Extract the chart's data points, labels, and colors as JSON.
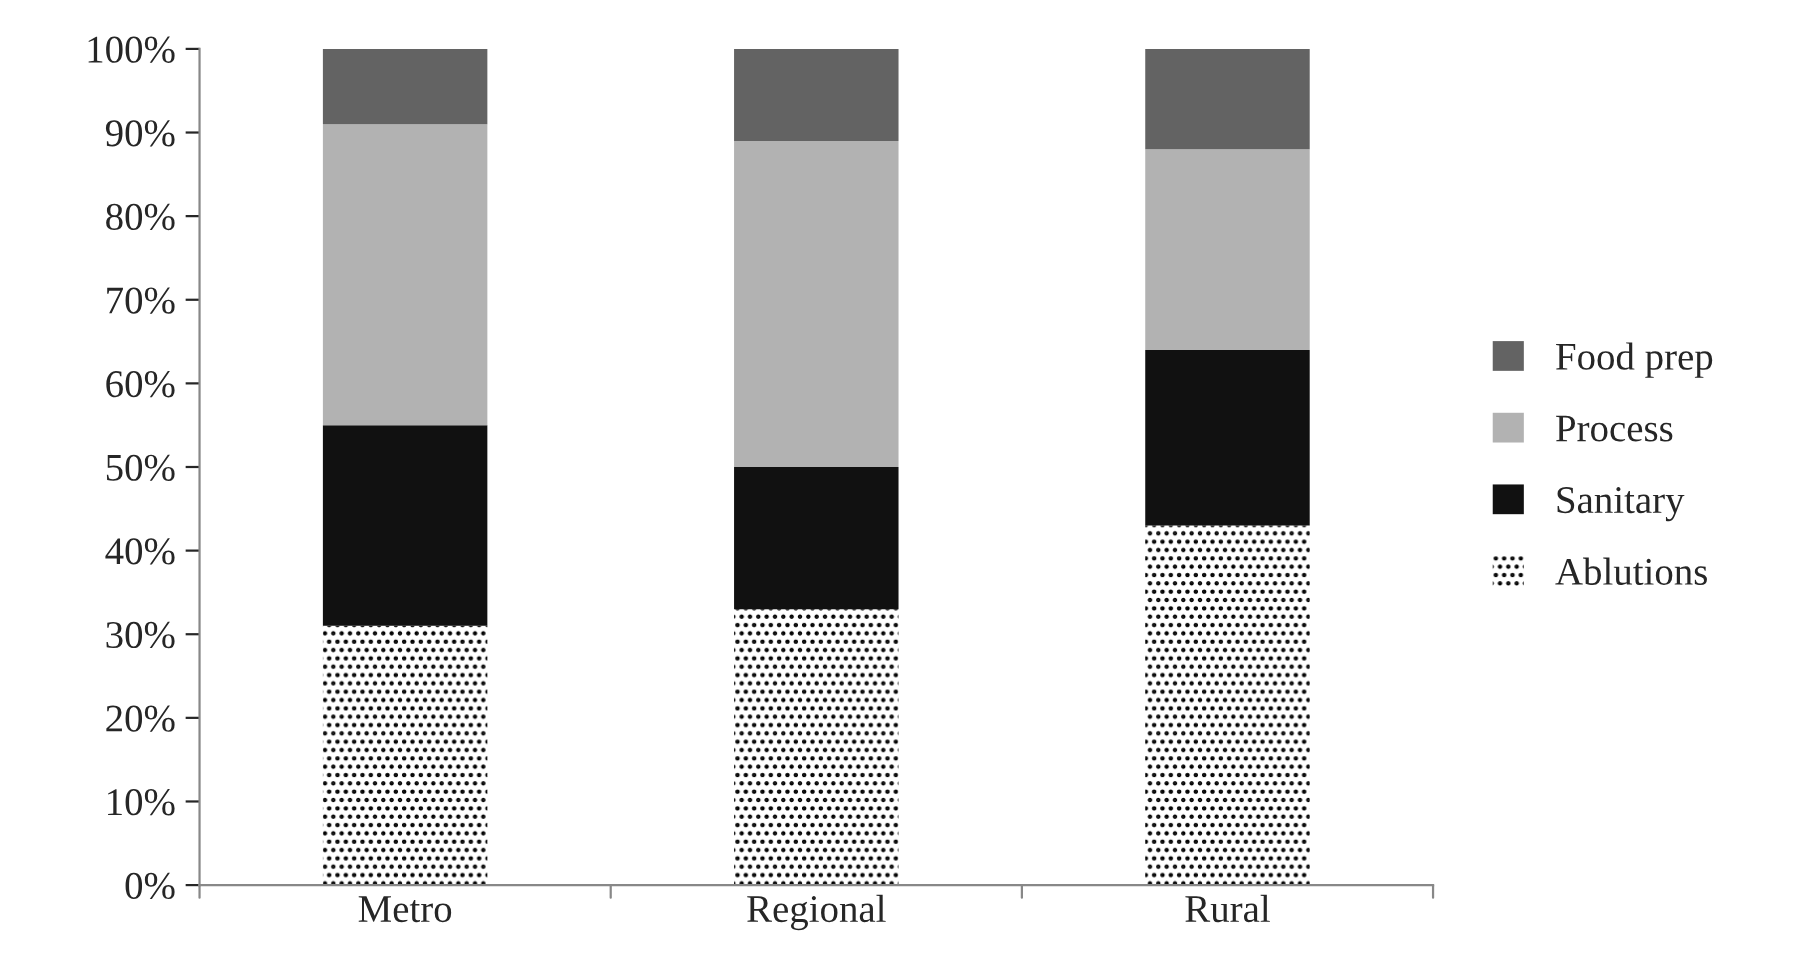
{
  "chart_data": {
    "type": "bar",
    "stacked": true,
    "categories": [
      "Metro",
      "Regional",
      "Rural"
    ],
    "series": [
      {
        "name": "Ablutions",
        "color": "#ffffff",
        "values": [
          31,
          33,
          43
        ]
      },
      {
        "name": "Sanitary",
        "color": "#111111",
        "values": [
          24,
          17,
          21
        ]
      },
      {
        "name": "Process",
        "color": "#b2b2b2",
        "values": [
          36,
          39,
          24
        ]
      },
      {
        "name": "Food prep",
        "color": "#636363",
        "values": [
          9,
          11,
          12
        ]
      }
    ],
    "ylim": [
      0,
      100
    ],
    "yticks": [
      {
        "value": 0,
        "label": "0%"
      },
      {
        "value": 10,
        "label": "10%"
      },
      {
        "value": 20,
        "label": "20%"
      },
      {
        "value": 30,
        "label": "30%"
      },
      {
        "value": 40,
        "label": "40%"
      },
      {
        "value": 50,
        "label": "50%"
      },
      {
        "value": 60,
        "label": "60%"
      },
      {
        "value": 70,
        "label": "70%"
      },
      {
        "value": 80,
        "label": "80%"
      },
      {
        "value": 90,
        "label": "90%"
      },
      {
        "value": 100,
        "label": "100%"
      }
    ],
    "legend": "right"
  }
}
